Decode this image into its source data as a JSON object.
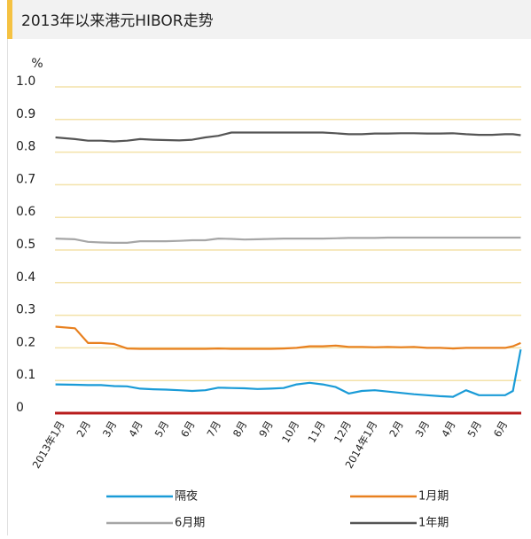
{
  "chart_data": {
    "type": "line",
    "title": "2013年以来港元HIBOR走势",
    "y_label": "%",
    "x": [
      -0.25,
      0.5,
      1,
      1.5,
      2,
      2.5,
      3,
      3.5,
      4,
      4.5,
      5,
      5.5,
      6,
      6.5,
      7,
      7.5,
      8,
      8.5,
      9,
      9.5,
      10,
      10.5,
      11,
      11.5,
      12,
      12.5,
      13,
      13.5,
      14,
      14.5,
      15,
      15.5,
      16,
      16.5,
      17,
      17.3,
      17.6
    ],
    "xlim": [
      -0.27,
      17.62
    ],
    "xticks": [
      {
        "value": 0,
        "label": "2013年1月"
      },
      {
        "value": 1,
        "label": "2月"
      },
      {
        "value": 2,
        "label": "3月"
      },
      {
        "value": 3,
        "label": "4月"
      },
      {
        "value": 4,
        "label": "5月"
      },
      {
        "value": 5,
        "label": "6月"
      },
      {
        "value": 6,
        "label": "7月"
      },
      {
        "value": 7,
        "label": "8月"
      },
      {
        "value": 8,
        "label": "9月"
      },
      {
        "value": 9,
        "label": "10月"
      },
      {
        "value": 10,
        "label": "11月"
      },
      {
        "value": 11,
        "label": "12月"
      },
      {
        "value": 12,
        "label": "2014年1月"
      },
      {
        "value": 13,
        "label": "2月"
      },
      {
        "value": 14,
        "label": "3月"
      },
      {
        "value": 15,
        "label": "4月"
      },
      {
        "value": 16,
        "label": "5月"
      },
      {
        "value": 17,
        "label": "6月"
      }
    ],
    "ylim": [
      0,
      1.0
    ],
    "yticks": [
      0,
      0.1,
      0.2,
      0.3,
      0.4,
      0.5,
      0.6,
      0.7,
      0.8,
      0.9,
      {
        "value": 1.0,
        "label": "1.0"
      }
    ],
    "grid": true,
    "series": [
      {
        "name": "隔夜",
        "color": "#1a9bd7",
        "values": [
          0.088,
          0.087,
          0.086,
          0.086,
          0.083,
          0.082,
          0.075,
          0.073,
          0.072,
          0.07,
          0.068,
          0.07,
          0.078,
          0.077,
          0.076,
          0.074,
          0.075,
          0.077,
          0.088,
          0.093,
          0.088,
          0.08,
          0.06,
          0.068,
          0.07,
          0.066,
          0.062,
          0.058,
          0.055,
          0.052,
          0.05,
          0.07,
          0.055,
          0.055,
          0.055,
          0.068,
          0.195
        ]
      },
      {
        "name": "1月期",
        "color": "#e8801f",
        "values": [
          0.265,
          0.26,
          0.215,
          0.215,
          0.212,
          0.198,
          0.197,
          0.197,
          0.197,
          0.197,
          0.197,
          0.197,
          0.198,
          0.197,
          0.197,
          0.197,
          0.197,
          0.198,
          0.2,
          0.205,
          0.205,
          0.207,
          0.203,
          0.203,
          0.202,
          0.203,
          0.202,
          0.203,
          0.2,
          0.2,
          0.198,
          0.2,
          0.2,
          0.2,
          0.2,
          0.205,
          0.215
        ]
      },
      {
        "name": "6月期",
        "color": "#a6a6a6",
        "values": [
          0.535,
          0.533,
          0.525,
          0.523,
          0.522,
          0.522,
          0.527,
          0.527,
          0.527,
          0.528,
          0.53,
          0.53,
          0.535,
          0.534,
          0.532,
          0.533,
          0.534,
          0.535,
          0.535,
          0.535,
          0.535,
          0.536,
          0.537,
          0.537,
          0.537,
          0.538,
          0.538,
          0.538,
          0.538,
          0.538,
          0.538,
          0.538,
          0.538,
          0.538,
          0.538,
          0.538,
          0.538
        ]
      },
      {
        "name": "1年期",
        "color": "#555555",
        "values": [
          0.845,
          0.84,
          0.835,
          0.835,
          0.833,
          0.835,
          0.84,
          0.838,
          0.837,
          0.836,
          0.838,
          0.845,
          0.85,
          0.86,
          0.86,
          0.86,
          0.86,
          0.86,
          0.86,
          0.86,
          0.86,
          0.858,
          0.855,
          0.855,
          0.857,
          0.857,
          0.858,
          0.858,
          0.857,
          0.857,
          0.858,
          0.855,
          0.853,
          0.853,
          0.855,
          0.855,
          0.852
        ]
      }
    ]
  }
}
